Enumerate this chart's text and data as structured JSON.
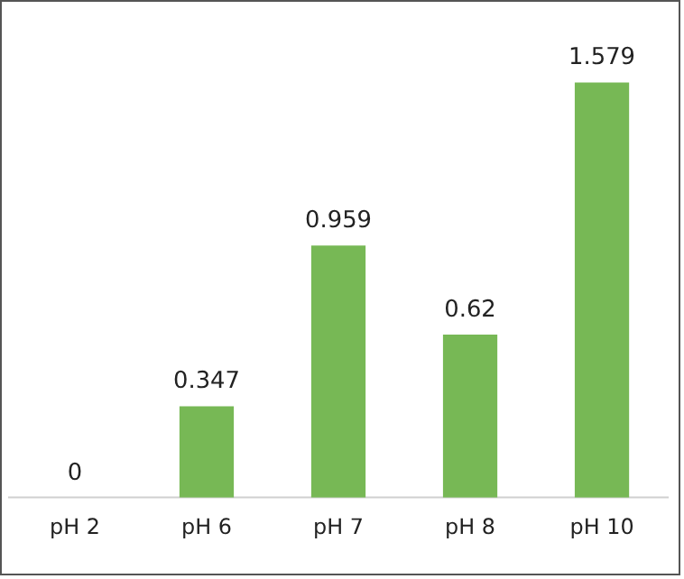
{
  "chart_data": {
    "type": "bar",
    "categories": [
      "pH 2",
      "pH 6",
      "pH 7",
      "pH 8",
      "pH 10"
    ],
    "values": [
      0,
      0.347,
      0.959,
      0.62,
      1.579
    ],
    "color": "#77b855",
    "data_labels": true,
    "grid": false,
    "legend": false
  }
}
